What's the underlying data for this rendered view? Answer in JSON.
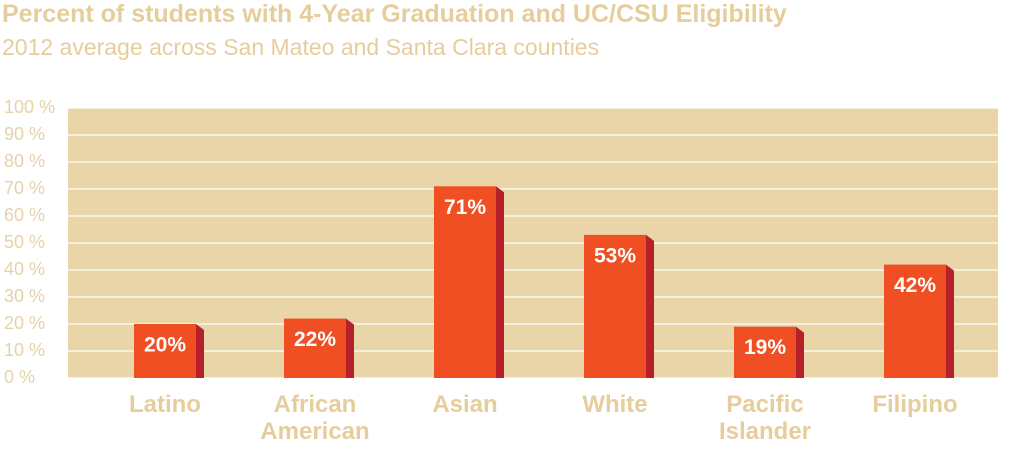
{
  "chart_data": {
    "type": "bar",
    "title": "Percent of students with 4-Year Graduation and UC/CSU Eligibility",
    "subtitle": "2012 average across San Mateo and Santa Clara counties",
    "categories": [
      "Latino",
      "African American",
      "Asian",
      "White",
      "Pacific Islander",
      "Filipino"
    ],
    "values": [
      20,
      22,
      71,
      53,
      19,
      42
    ],
    "value_labels": [
      "20%",
      "22%",
      "71%",
      "53%",
      "19%",
      "42%"
    ],
    "color": "#f04e23",
    "ylim": [
      0,
      100
    ],
    "yticks": [
      {
        "value": 0,
        "label": "0 %"
      },
      {
        "value": 10,
        "label": "10 %"
      },
      {
        "value": 20,
        "label": "20 %"
      },
      {
        "value": 30,
        "label": "30 %"
      },
      {
        "value": 40,
        "label": "40 %"
      },
      {
        "value": 50,
        "label": "50 %"
      },
      {
        "value": 60,
        "label": "60 %"
      },
      {
        "value": 70,
        "label": "70 %"
      },
      {
        "value": 80,
        "label": "80 %"
      },
      {
        "value": 90,
        "label": "90 %"
      },
      {
        "value": 100,
        "label": "100 %"
      }
    ],
    "grid": true
  }
}
